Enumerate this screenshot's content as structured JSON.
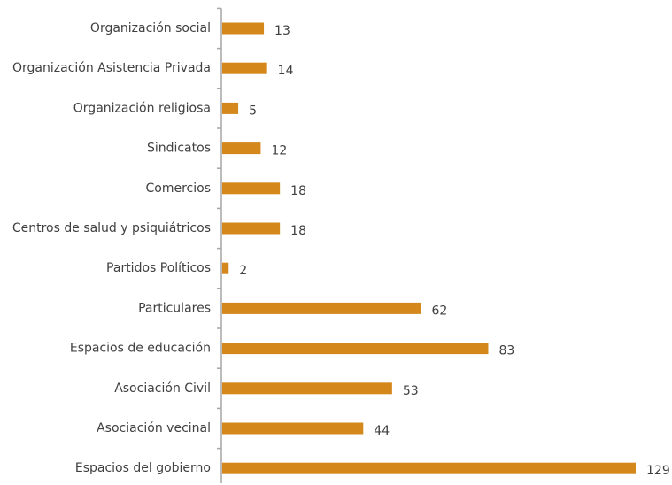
{
  "chart_data": {
    "type": "bar",
    "orientation": "horizontal",
    "categories": [
      "Organización social",
      "Organización Asistencia Privada",
      "Organización religiosa",
      "Sindicatos",
      "Comercios",
      "Centros de salud y psiquiátricos",
      "Partidos Políticos",
      "Particulares",
      "Espacios de educación",
      "Asociación Civil",
      "Asociación vecinal",
      "Espacios del gobierno"
    ],
    "values": [
      13,
      14,
      5,
      12,
      18,
      18,
      2,
      62,
      83,
      53,
      44,
      129
    ],
    "data_labels": true,
    "grid": false,
    "legend": "none",
    "xlim": [
      0,
      129
    ],
    "bar_color": "#d4881c",
    "title": "",
    "xlabel": "",
    "ylabel": ""
  }
}
